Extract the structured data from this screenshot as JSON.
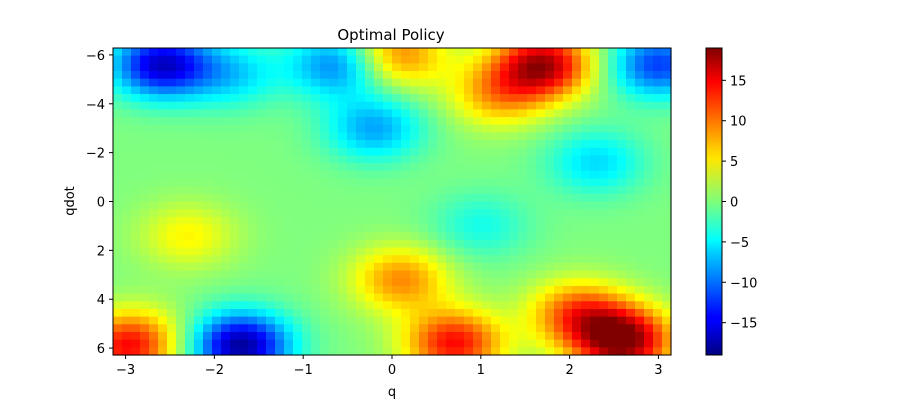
{
  "chart_data": {
    "type": "heatmap",
    "title": "Optimal Policy",
    "xlabel": "q",
    "ylabel": "qdot",
    "xlim": [
      -3.1416,
      3.1416
    ],
    "ylim": [
      -6.2832,
      6.2832
    ],
    "y_axis_inverted": true,
    "x_ticks": [
      -3,
      -2,
      -1,
      0,
      1,
      2,
      3
    ],
    "x_tick_labels": [
      "−3",
      "−2",
      "−1",
      "0",
      "1",
      "2",
      "3"
    ],
    "y_ticks": [
      -6,
      -4,
      -2,
      0,
      2,
      4,
      6
    ],
    "y_tick_labels": [
      "−6",
      "−4",
      "−2",
      "0",
      "2",
      "4",
      "6"
    ],
    "colormap": "jet",
    "colorbar": {
      "range": [
        -19,
        19
      ],
      "ticks": [
        -15,
        -10,
        -5,
        0,
        5,
        10,
        15
      ],
      "tick_labels": [
        "−15",
        "−10",
        "−5",
        "0",
        "5",
        "10",
        "15"
      ]
    },
    "grid": false,
    "approximate_features": [
      {
        "q": -2.6,
        "qdot": -5.6,
        "value": -16
      },
      {
        "q": -1.8,
        "qdot": -5.2,
        "value": -6
      },
      {
        "q": -0.6,
        "qdot": -5.6,
        "value": -10
      },
      {
        "q": -0.2,
        "qdot": -3.0,
        "value": -8
      },
      {
        "q": 0.05,
        "qdot": -6.0,
        "value": 10
      },
      {
        "q": 1.7,
        "qdot": -5.6,
        "value": 17
      },
      {
        "q": 1.2,
        "qdot": -4.4,
        "value": 8
      },
      {
        "q": 3.0,
        "qdot": -5.6,
        "value": -12
      },
      {
        "q": 2.3,
        "qdot": -1.6,
        "value": -6
      },
      {
        "q": 1.0,
        "qdot": 1.0,
        "value": -4
      },
      {
        "q": -2.3,
        "qdot": 1.4,
        "value": 5
      },
      {
        "q": 0.1,
        "qdot": 3.2,
        "value": 9
      },
      {
        "q": -1.7,
        "qdot": 5.9,
        "value": -18
      },
      {
        "q": -2.8,
        "qdot": 5.4,
        "value": 3
      },
      {
        "q": -3.0,
        "qdot": 6.0,
        "value": 12
      },
      {
        "q": 0.7,
        "qdot": 5.8,
        "value": 14
      },
      {
        "q": 2.6,
        "qdot": 5.7,
        "value": 19
      },
      {
        "q": 2.1,
        "qdot": 4.6,
        "value": 11
      }
    ]
  }
}
